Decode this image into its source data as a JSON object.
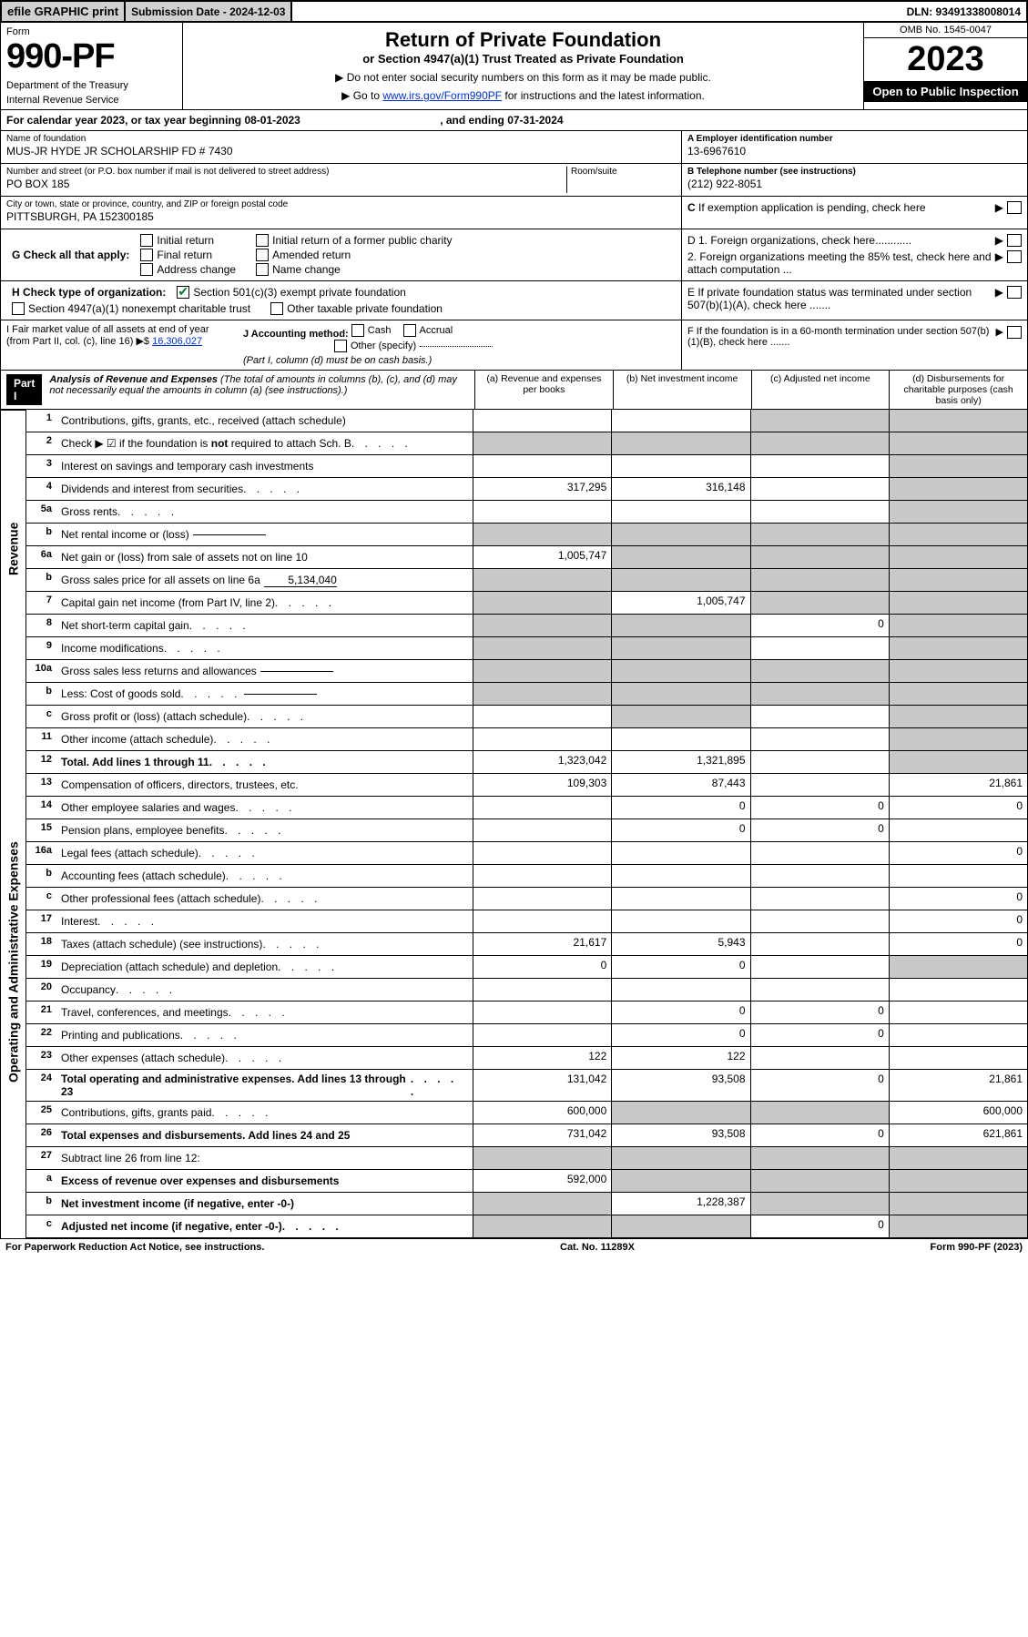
{
  "topbar": {
    "efile": "efile GRAPHIC print",
    "submission_label": "Submission Date - 2024-12-03",
    "dln": "DLN: 93491338008014"
  },
  "header": {
    "form_label": "Form",
    "form_number": "990-PF",
    "dept1": "Department of the Treasury",
    "dept2": "Internal Revenue Service",
    "title": "Return of Private Foundation",
    "subtitle": "or Section 4947(a)(1) Trust Treated as Private Foundation",
    "instr1": "▶ Do not enter social security numbers on this form as it may be made public.",
    "instr2_prefix": "▶ Go to ",
    "instr2_link": "www.irs.gov/Form990PF",
    "instr2_suffix": " for instructions and the latest information.",
    "omb": "OMB No. 1545-0047",
    "year": "2023",
    "open": "Open to Public Inspection"
  },
  "year_line": {
    "prefix": "For calendar year 2023, or tax year beginning ",
    "begin": "08-01-2023",
    "mid": " , and ending ",
    "end": "07-31-2024"
  },
  "id": {
    "name_label": "Name of foundation",
    "name_value": "MUS-JR HYDE JR SCHOLARSHIP FD # 7430",
    "addr_label": "Number and street (or P.O. box number if mail is not delivered to street address)",
    "addr_value": "PO BOX 185",
    "room_label": "Room/suite",
    "city_label": "City or town, state or province, country, and ZIP or foreign postal code",
    "city_value": "PITTSBURGH, PA  152300185",
    "ein_label": "A Employer identification number",
    "ein_value": "13-6967610",
    "phone_label": "B Telephone number (see instructions)",
    "phone_value": "(212) 922-8051",
    "c_label": "C If exemption application is pending, check here"
  },
  "g": {
    "label": "G Check all that apply:",
    "opts": [
      "Initial return",
      "Final return",
      "Address change",
      "Initial return of a former public charity",
      "Amended return",
      "Name change"
    ]
  },
  "h": {
    "label": "H Check type of organization:",
    "opt1": "Section 501(c)(3) exempt private foundation",
    "opt2": "Section 4947(a)(1) nonexempt charitable trust",
    "opt3": "Other taxable private foundation"
  },
  "i": {
    "label1": "I Fair market value of all assets at end of year (from Part II, col. (c), line 16)",
    "arrow": "▶$",
    "amount": "16,306,027"
  },
  "j": {
    "label": "J Accounting method:",
    "cash": "Cash",
    "accrual": "Accrual",
    "other": "Other (specify)",
    "note": "(Part I, column (d) must be on cash basis.)"
  },
  "right_checks": {
    "d1": "D 1. Foreign organizations, check here............",
    "d2": "2. Foreign organizations meeting the 85% test, check here and attach computation ...",
    "e": "E  If private foundation status was terminated under section 507(b)(1)(A), check here .......",
    "f": "F  If the foundation is in a 60-month termination under section 507(b)(1)(B), check here .......",
    "arrow": "▶"
  },
  "part1": {
    "part_label": "Part I",
    "title": "Analysis of Revenue and Expenses",
    "title_note": "(The total of amounts in columns (b), (c), and (d) may not necessarily equal the amounts in column (a) (see instructions).)",
    "col_a": "(a)  Revenue and expenses per books",
    "col_b": "(b)  Net investment income",
    "col_c": "(c)  Adjusted net income",
    "col_d": "(d)  Disbursements for charitable purposes (cash basis only)"
  },
  "side": {
    "revenue": "Revenue",
    "expenses": "Operating and Administrative Expenses"
  },
  "rows": [
    {
      "n": "1",
      "label": "Contributions, gifts, grants, etc., received (attach schedule)",
      "a": "",
      "b": "",
      "c": "g",
      "d": "g"
    },
    {
      "n": "2",
      "label": "Check ▶ ☑ if the foundation is not required to attach Sch. B",
      "dots": true,
      "a": "g",
      "b": "g",
      "c": "g",
      "d": "g",
      "bold_not": true
    },
    {
      "n": "3",
      "label": "Interest on savings and temporary cash investments",
      "a": "",
      "b": "",
      "c": "",
      "d": "g"
    },
    {
      "n": "4",
      "label": "Dividends and interest from securities",
      "dots": true,
      "a": "317,295",
      "b": "316,148",
      "c": "",
      "d": "g"
    },
    {
      "n": "5a",
      "label": "Gross rents",
      "dots": true,
      "a": "",
      "b": "",
      "c": "",
      "d": "g"
    },
    {
      "n": "b",
      "label": "Net rental income or (loss)",
      "inline": "",
      "a": "g",
      "b": "g",
      "c": "g",
      "d": "g"
    },
    {
      "n": "6a",
      "label": "Net gain or (loss) from sale of assets not on line 10",
      "a": "1,005,747",
      "b": "g",
      "c": "g",
      "d": "g"
    },
    {
      "n": "b",
      "label": "Gross sales price for all assets on line 6a",
      "inline": "5,134,040",
      "a": "g",
      "b": "g",
      "c": "g",
      "d": "g"
    },
    {
      "n": "7",
      "label": "Capital gain net income (from Part IV, line 2)",
      "dots": true,
      "a": "g",
      "b": "1,005,747",
      "c": "g",
      "d": "g"
    },
    {
      "n": "8",
      "label": "Net short-term capital gain",
      "dots": true,
      "a": "g",
      "b": "g",
      "c": "0",
      "d": "g"
    },
    {
      "n": "9",
      "label": "Income modifications",
      "dots": true,
      "a": "g",
      "b": "g",
      "c": "",
      "d": "g"
    },
    {
      "n": "10a",
      "label": "Gross sales less returns and allowances",
      "inline": "",
      "a": "g",
      "b": "g",
      "c": "g",
      "d": "g"
    },
    {
      "n": "b",
      "label": "Less: Cost of goods sold",
      "dots": true,
      "inline": "",
      "a": "g",
      "b": "g",
      "c": "g",
      "d": "g"
    },
    {
      "n": "c",
      "label": "Gross profit or (loss) (attach schedule)",
      "dots": true,
      "a": "",
      "b": "g",
      "c": "",
      "d": "g"
    },
    {
      "n": "11",
      "label": "Other income (attach schedule)",
      "dots": true,
      "a": "",
      "b": "",
      "c": "",
      "d": "g"
    },
    {
      "n": "12",
      "label": "Total. Add lines 1 through 11",
      "bold": true,
      "dots": true,
      "a": "1,323,042",
      "b": "1,321,895",
      "c": "",
      "d": "g"
    },
    {
      "n": "13",
      "label": "Compensation of officers, directors, trustees, etc.",
      "a": "109,303",
      "b": "87,443",
      "c": "",
      "d": "21,861"
    },
    {
      "n": "14",
      "label": "Other employee salaries and wages",
      "dots": true,
      "a": "",
      "b": "0",
      "c": "0",
      "d": "0"
    },
    {
      "n": "15",
      "label": "Pension plans, employee benefits",
      "dots": true,
      "a": "",
      "b": "0",
      "c": "0",
      "d": ""
    },
    {
      "n": "16a",
      "label": "Legal fees (attach schedule)",
      "dots": true,
      "a": "",
      "b": "",
      "c": "",
      "d": "0"
    },
    {
      "n": "b",
      "label": "Accounting fees (attach schedule)",
      "dots": true,
      "a": "",
      "b": "",
      "c": "",
      "d": ""
    },
    {
      "n": "c",
      "label": "Other professional fees (attach schedule)",
      "dots": true,
      "a": "",
      "b": "",
      "c": "",
      "d": "0"
    },
    {
      "n": "17",
      "label": "Interest",
      "dots": true,
      "a": "",
      "b": "",
      "c": "",
      "d": "0"
    },
    {
      "n": "18",
      "label": "Taxes (attach schedule) (see instructions)",
      "dots": true,
      "a": "21,617",
      "b": "5,943",
      "c": "",
      "d": "0"
    },
    {
      "n": "19",
      "label": "Depreciation (attach schedule) and depletion",
      "dots": true,
      "a": "0",
      "b": "0",
      "c": "",
      "d": "g"
    },
    {
      "n": "20",
      "label": "Occupancy",
      "dots": true,
      "a": "",
      "b": "",
      "c": "",
      "d": ""
    },
    {
      "n": "21",
      "label": "Travel, conferences, and meetings",
      "dots": true,
      "a": "",
      "b": "0",
      "c": "0",
      "d": ""
    },
    {
      "n": "22",
      "label": "Printing and publications",
      "dots": true,
      "a": "",
      "b": "0",
      "c": "0",
      "d": ""
    },
    {
      "n": "23",
      "label": "Other expenses (attach schedule)",
      "dots": true,
      "a": "122",
      "b": "122",
      "c": "",
      "d": ""
    },
    {
      "n": "24",
      "label": "Total operating and administrative expenses. Add lines 13 through 23",
      "bold": true,
      "dots": true,
      "a": "131,042",
      "b": "93,508",
      "c": "0",
      "d": "21,861"
    },
    {
      "n": "25",
      "label": "Contributions, gifts, grants paid",
      "dots": true,
      "a": "600,000",
      "b": "g",
      "c": "g",
      "d": "600,000"
    },
    {
      "n": "26",
      "label": "Total expenses and disbursements. Add lines 24 and 25",
      "bold": true,
      "a": "731,042",
      "b": "93,508",
      "c": "0",
      "d": "621,861"
    },
    {
      "n": "27",
      "label": "Subtract line 26 from line 12:",
      "a": "g",
      "b": "g",
      "c": "g",
      "d": "g"
    },
    {
      "n": "a",
      "label": "Excess of revenue over expenses and disbursements",
      "bold": true,
      "a": "592,000",
      "b": "g",
      "c": "g",
      "d": "g"
    },
    {
      "n": "b",
      "label": "Net investment income (if negative, enter -0-)",
      "bold": true,
      "a": "g",
      "b": "1,228,387",
      "c": "g",
      "d": "g"
    },
    {
      "n": "c",
      "label": "Adjusted net income (if negative, enter -0-)",
      "bold": true,
      "dots": true,
      "a": "g",
      "b": "g",
      "c": "0",
      "d": "g"
    }
  ],
  "footer": {
    "left": "For Paperwork Reduction Act Notice, see instructions.",
    "mid": "Cat. No. 11289X",
    "right": "Form 990-PF (2023)"
  }
}
